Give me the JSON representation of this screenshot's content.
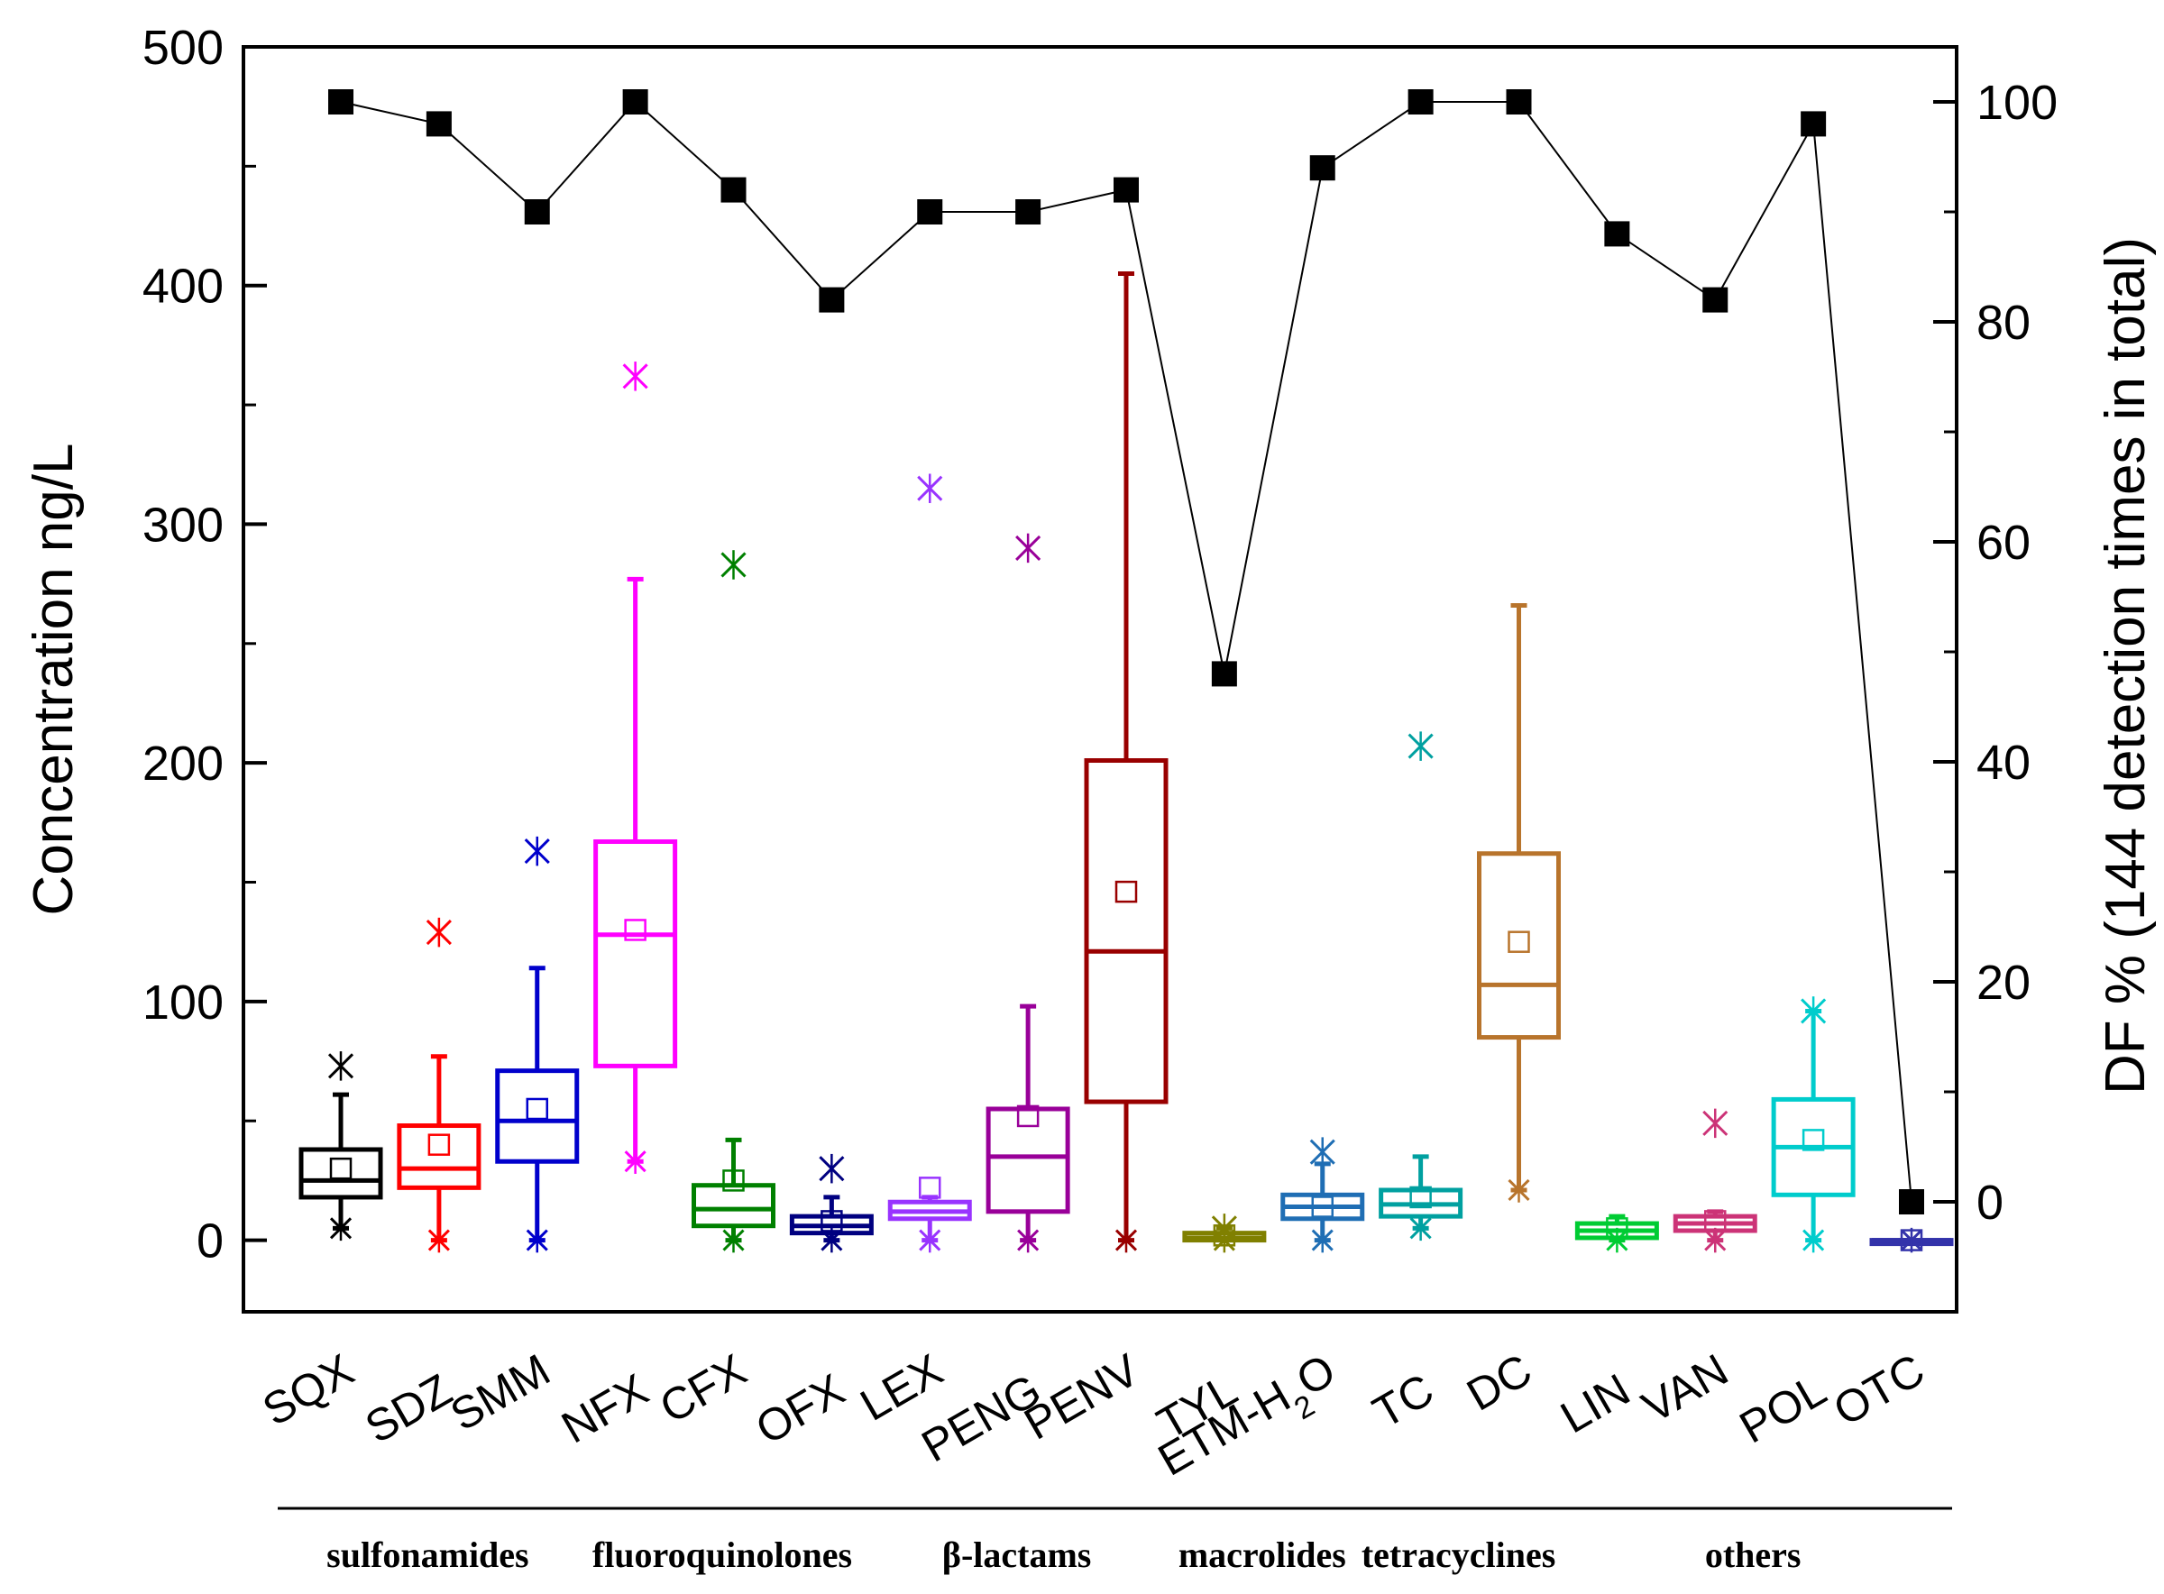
{
  "chart_data": {
    "type": "box",
    "left_axis": {
      "label": "Concentration ng/L",
      "range": [
        -30,
        500
      ],
      "ticks": [
        0,
        100,
        200,
        300,
        400,
        500
      ]
    },
    "right_axis": {
      "label": "DF % (144 detection times in total)",
      "range": [
        -10,
        105
      ],
      "ticks": [
        0,
        20,
        40,
        60,
        80,
        100
      ]
    },
    "categories": [
      {
        "label": "SQX",
        "color": "#000000",
        "min": 5,
        "q1": 18,
        "median": 25,
        "q3": 38,
        "max": 61,
        "mean": 30,
        "outliers": [
          73
        ],
        "lo_marker": 5,
        "df": 100
      },
      {
        "label": "SDZ",
        "color": "#ff0000",
        "min": 0,
        "q1": 22,
        "median": 30,
        "q3": 48,
        "max": 77,
        "mean": 40,
        "outliers": [
          129
        ],
        "lo_marker": 0,
        "df": 98
      },
      {
        "label": "SMM",
        "color": "#0000cc",
        "min": 0,
        "q1": 33,
        "median": 50,
        "q3": 71,
        "max": 114,
        "mean": 55,
        "outliers": [
          163
        ],
        "lo_marker": 0,
        "df": 90
      },
      {
        "label": "NFX",
        "color": "#ff00ff",
        "min": 33,
        "q1": 73,
        "median": 128,
        "q3": 167,
        "max": 277,
        "mean": 130,
        "outliers": [
          362
        ],
        "lo_marker": 33,
        "df": 100
      },
      {
        "label": "CFX",
        "color": "#008000",
        "min": 0,
        "q1": 6,
        "median": 13,
        "q3": 23,
        "max": 42,
        "mean": 25,
        "outliers": [
          283
        ],
        "lo_marker": 0,
        "df": 92
      },
      {
        "label": "OFX",
        "color": "#000080",
        "min": 0,
        "q1": 3,
        "median": 6,
        "q3": 10,
        "max": 18,
        "mean": 8,
        "outliers": [
          30
        ],
        "lo_marker": 0,
        "df": 82
      },
      {
        "label": "LEX",
        "color": "#9933ff",
        "min": 0,
        "q1": 9,
        "median": 12,
        "q3": 16,
        "max": 18,
        "mean": 22,
        "outliers": [
          315
        ],
        "lo_marker": 0,
        "df": 90
      },
      {
        "label": "PENG",
        "color": "#990099",
        "min": 0,
        "q1": 12,
        "median": 35,
        "q3": 55,
        "max": 98,
        "mean": 52,
        "outliers": [
          290
        ],
        "lo_marker": 0,
        "df": 90
      },
      {
        "label": "PENV",
        "color": "#990000",
        "min": 0,
        "q1": 58,
        "median": 121,
        "q3": 201,
        "max": 405,
        "mean": 146,
        "outliers": [],
        "lo_marker": 0,
        "df": 92
      },
      {
        "label": "TYL",
        "color": "#808000",
        "min": 0,
        "q1": 0,
        "median": 1,
        "q3": 3,
        "max": 5,
        "mean": 2,
        "outliers": [
          5
        ],
        "lo_marker": 0,
        "df": 48
      },
      {
        "label": "ETM-H2O",
        "label_main": "ETM-H",
        "label_sub": "2",
        "label_tail": "O",
        "color": "#1f6eb4",
        "min": 0,
        "q1": 9,
        "median": 14,
        "q3": 19,
        "max": 32,
        "mean": 14,
        "outliers": [
          37
        ],
        "lo_marker": 0,
        "df": 94
      },
      {
        "label": "TC",
        "color": "#00a0a0",
        "min": 5,
        "q1": 10,
        "median": 15,
        "q3": 21,
        "max": 35,
        "mean": 18,
        "outliers": [
          207
        ],
        "lo_marker": 5,
        "df": 100
      },
      {
        "label": "DC",
        "color": "#b8742c",
        "min": 21,
        "q1": 85,
        "median": 107,
        "q3": 162,
        "max": 266,
        "mean": 125,
        "outliers": [],
        "lo_marker": 21,
        "df": 100
      },
      {
        "label": "LIN",
        "color": "#00cc33",
        "min": 0,
        "q1": 1,
        "median": 4,
        "q3": 7,
        "max": 10,
        "mean": 5,
        "outliers": [],
        "lo_marker": 0,
        "df": 88
      },
      {
        "label": "VAN",
        "color": "#cc3377",
        "min": 0,
        "q1": 4,
        "median": 7,
        "q3": 10,
        "max": 12,
        "mean": 8,
        "outliers": [
          49
        ],
        "lo_marker": 0,
        "df": 82
      },
      {
        "label": "POL",
        "color": "#00cccc",
        "min": 0,
        "q1": 19,
        "median": 39,
        "q3": 59,
        "max": 96,
        "mean": 42,
        "outliers": [
          96
        ],
        "lo_marker": 0,
        "df": 98
      },
      {
        "label": "OTC",
        "color": "#3333aa",
        "min": 0,
        "q1": 0,
        "median": 0,
        "q3": 0,
        "max": 0,
        "mean": 0,
        "outliers": [],
        "lo_marker": 0,
        "df": 0
      }
    ],
    "groups": [
      {
        "label": "sulfonamides",
        "from": 0,
        "to": 2
      },
      {
        "label": "fluoroquinolones",
        "from": 3,
        "to": 5
      },
      {
        "label": "β-lactams",
        "from": 6,
        "to": 8
      },
      {
        "label": "macrolides",
        "from": 9,
        "to": 10
      },
      {
        "label": "tetracyclines",
        "from": 11,
        "to": 12
      },
      {
        "label": "others",
        "from": 13,
        "to": 16
      }
    ],
    "df_series_color": "#000000"
  }
}
